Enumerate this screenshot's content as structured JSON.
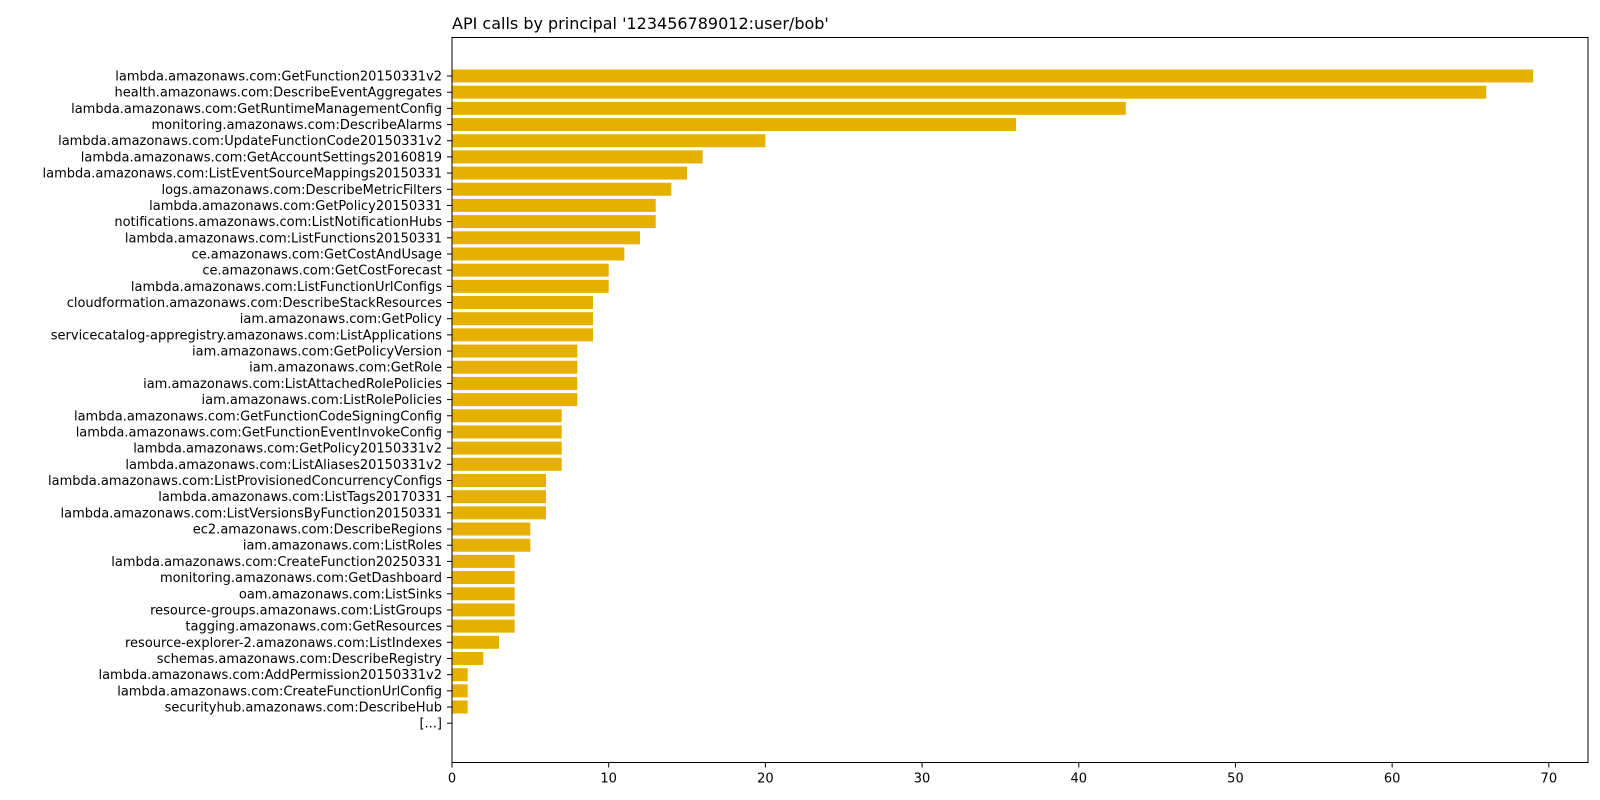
{
  "chart_data": {
    "type": "bar",
    "orientation": "horizontal",
    "title": "API calls by principal '123456789012:user/bob'",
    "xlabel": "",
    "ylabel": "",
    "xlim": [
      0,
      72.5
    ],
    "x_ticks": [
      0,
      10,
      20,
      30,
      40,
      50,
      60,
      70
    ],
    "grid": false,
    "bar_color": "#e6b000",
    "categories": [
      "lambda.amazonaws.com:GetFunction20150331v2",
      "health.amazonaws.com:DescribeEventAggregates",
      "lambda.amazonaws.com:GetRuntimeManagementConfig",
      "monitoring.amazonaws.com:DescribeAlarms",
      "lambda.amazonaws.com:UpdateFunctionCode20150331v2",
      "lambda.amazonaws.com:GetAccountSettings20160819",
      "lambda.amazonaws.com:ListEventSourceMappings20150331",
      "logs.amazonaws.com:DescribeMetricFilters",
      "lambda.amazonaws.com:GetPolicy20150331",
      "notifications.amazonaws.com:ListNotificationHubs",
      "lambda.amazonaws.com:ListFunctions20150331",
      "ce.amazonaws.com:GetCostAndUsage",
      "ce.amazonaws.com:GetCostForecast",
      "lambda.amazonaws.com:ListFunctionUrlConfigs",
      "cloudformation.amazonaws.com:DescribeStackResources",
      "iam.amazonaws.com:GetPolicy",
      "servicecatalog-appregistry.amazonaws.com:ListApplications",
      "iam.amazonaws.com:GetPolicyVersion",
      "iam.amazonaws.com:GetRole",
      "iam.amazonaws.com:ListAttachedRolePolicies",
      "iam.amazonaws.com:ListRolePolicies",
      "lambda.amazonaws.com:GetFunctionCodeSigningConfig",
      "lambda.amazonaws.com:GetFunctionEventInvokeConfig",
      "lambda.amazonaws.com:GetPolicy20150331v2",
      "lambda.amazonaws.com:ListAliases20150331v2",
      "lambda.amazonaws.com:ListProvisionedConcurrencyConfigs",
      "lambda.amazonaws.com:ListTags20170331",
      "lambda.amazonaws.com:ListVersionsByFunction20150331",
      "ec2.amazonaws.com:DescribeRegions",
      "iam.amazonaws.com:ListRoles",
      "lambda.amazonaws.com:CreateFunction20250331",
      "monitoring.amazonaws.com:GetDashboard",
      "oam.amazonaws.com:ListSinks",
      "resource-groups.amazonaws.com:ListGroups",
      "tagging.amazonaws.com:GetResources",
      "resource-explorer-2.amazonaws.com:ListIndexes",
      "schemas.amazonaws.com:DescribeRegistry",
      "lambda.amazonaws.com:AddPermission20150331v2",
      "lambda.amazonaws.com:CreateFunctionUrlConfig",
      "securityhub.amazonaws.com:DescribeHub",
      "[...]"
    ],
    "values": [
      69,
      66,
      43,
      36,
      20,
      16,
      15,
      14,
      13,
      13,
      12,
      11,
      10,
      10,
      9,
      9,
      9,
      8,
      8,
      8,
      8,
      7,
      7,
      7,
      7,
      6,
      6,
      6,
      5,
      5,
      4,
      4,
      4,
      4,
      4,
      3,
      2,
      1,
      1,
      1,
      0
    ]
  }
}
